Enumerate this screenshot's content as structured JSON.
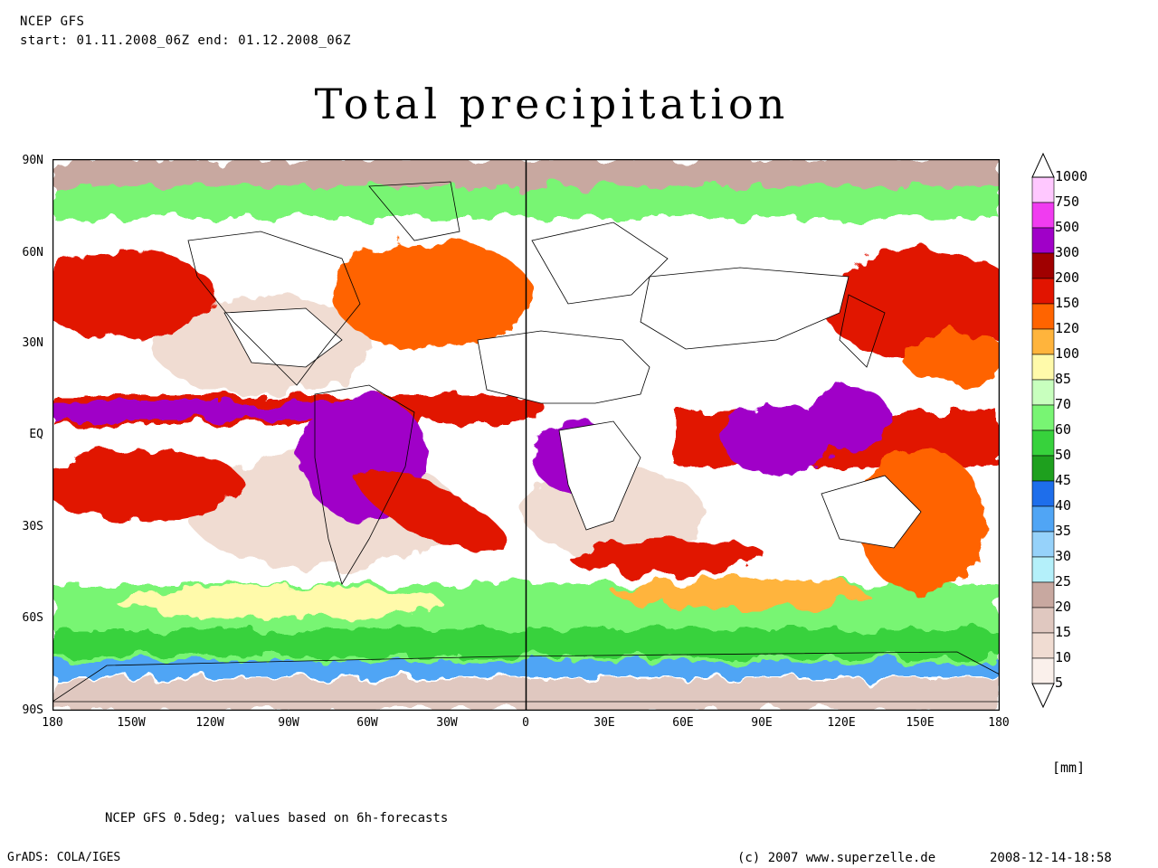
{
  "header": {
    "model": "NCEP GFS",
    "period": "start: 01.11.2008_06Z end: 01.12.2008_06Z"
  },
  "title": "Total precipitation",
  "map": {
    "lat_labels": [
      "90N",
      "60N",
      "30N",
      "EQ",
      "30S",
      "60S",
      "90S"
    ],
    "lon_labels": [
      "180",
      "150W",
      "120W",
      "90W",
      "60W",
      "30W",
      "0",
      "30E",
      "60E",
      "90E",
      "120E",
      "150E",
      "180"
    ]
  },
  "colorbar": {
    "labels": [
      "1000",
      "750",
      "500",
      "300",
      "200",
      "150",
      "120",
      "100",
      "85",
      "70",
      "60",
      "50",
      "45",
      "40",
      "35",
      "30",
      "25",
      "20",
      "15",
      "10",
      "5"
    ],
    "colors": [
      "#ffc8ff",
      "#f03cf0",
      "#a000c8",
      "#a00000",
      "#e11400",
      "#ff6400",
      "#ffb43c",
      "#fffaaa",
      "#c8ffbe",
      "#78f573",
      "#37d23c",
      "#1ea01e",
      "#1e6eeb",
      "#50a5f5",
      "#96d2fa",
      "#b4f0fa",
      "#c8a8a0",
      "#e0c8c0",
      "#f0dcd2",
      "#faf0eb"
    ]
  },
  "units": "[mm]",
  "footer": {
    "note": "NCEP GFS 0.5deg; values based on 6h-forecasts",
    "software": "GrADS: COLA/IGES",
    "copyright": "(c) 2007 www.superzelle.de",
    "timestamp": "2008-12-14-18:58"
  }
}
